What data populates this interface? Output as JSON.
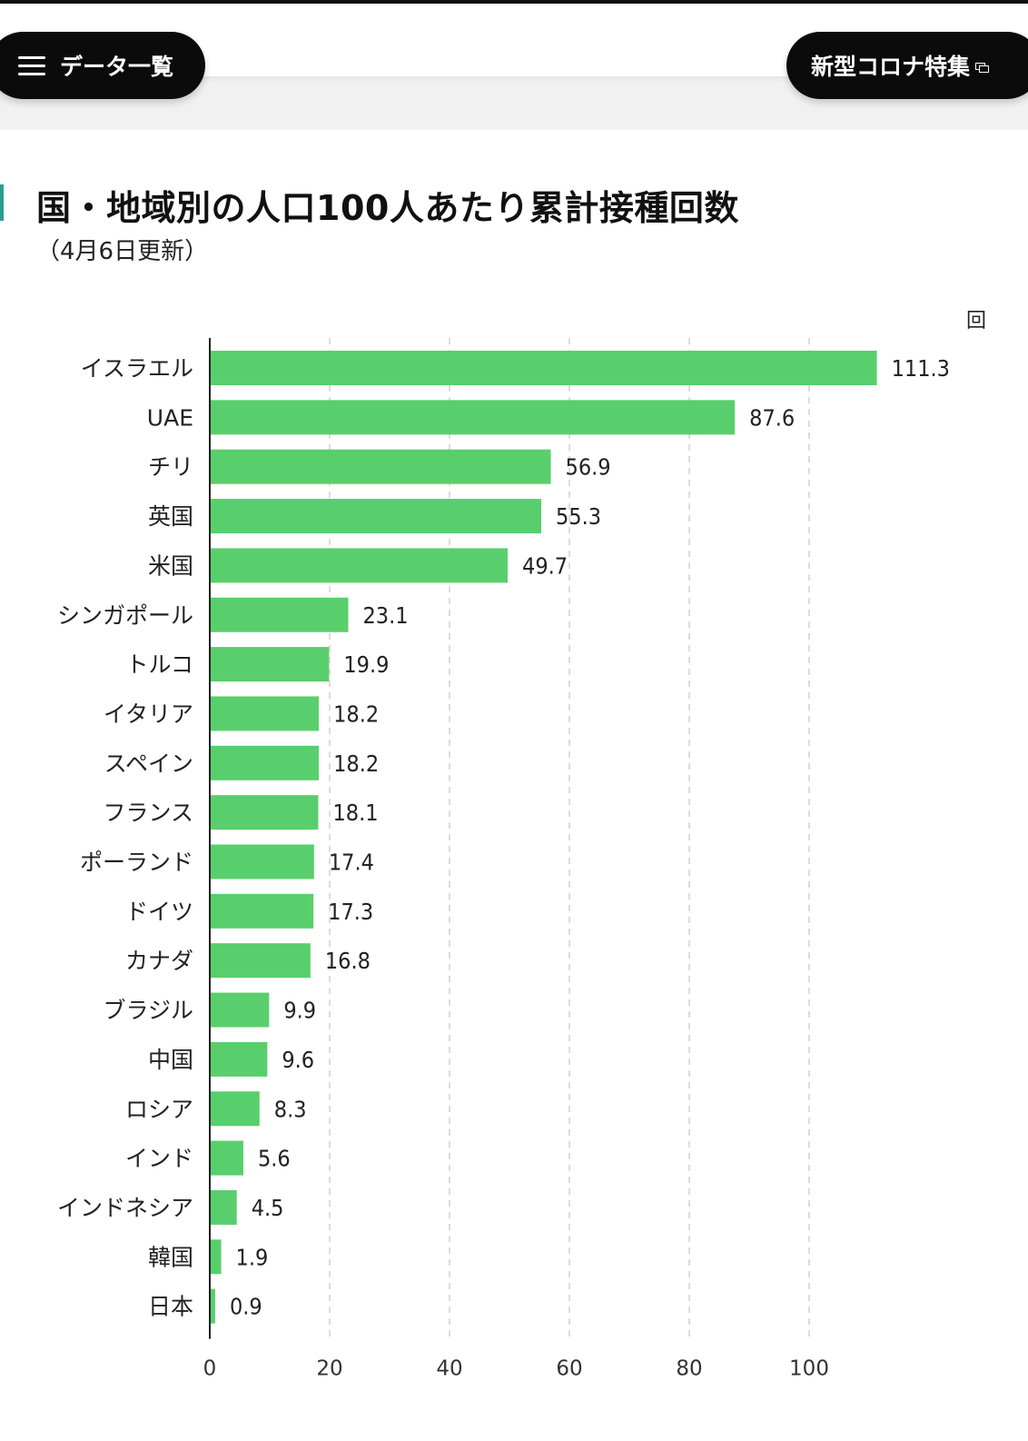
{
  "header": {
    "menu_label": "データ一覧",
    "feature_label": "新型コロナ特集"
  },
  "colors": {
    "bar": "#58cf6c",
    "grid": "#dcdcdc",
    "axis": "#222222",
    "accent": "#2a9d8f"
  },
  "chart_data": {
    "type": "bar",
    "orientation": "horizontal",
    "title": "国・地域別の人口100人あたり累計接種回数",
    "subtitle": "（4月6日更新）",
    "unit": "回",
    "xlim": [
      0,
      120
    ],
    "xticks": [
      0,
      20,
      40,
      60,
      80,
      100
    ],
    "grid": true,
    "categories": [
      "イスラエル",
      "UAE",
      "チリ",
      "英国",
      "米国",
      "シンガポール",
      "トルコ",
      "イタリア",
      "スペイン",
      "フランス",
      "ポーランド",
      "ドイツ",
      "カナダ",
      "ブラジル",
      "中国",
      "ロシア",
      "インド",
      "インドネシア",
      "韓国",
      "日本"
    ],
    "values": [
      111.3,
      87.6,
      56.9,
      55.3,
      49.7,
      23.1,
      19.9,
      18.2,
      18.2,
      18.1,
      17.4,
      17.3,
      16.8,
      9.9,
      9.6,
      8.3,
      5.6,
      4.5,
      1.9,
      0.9
    ]
  }
}
